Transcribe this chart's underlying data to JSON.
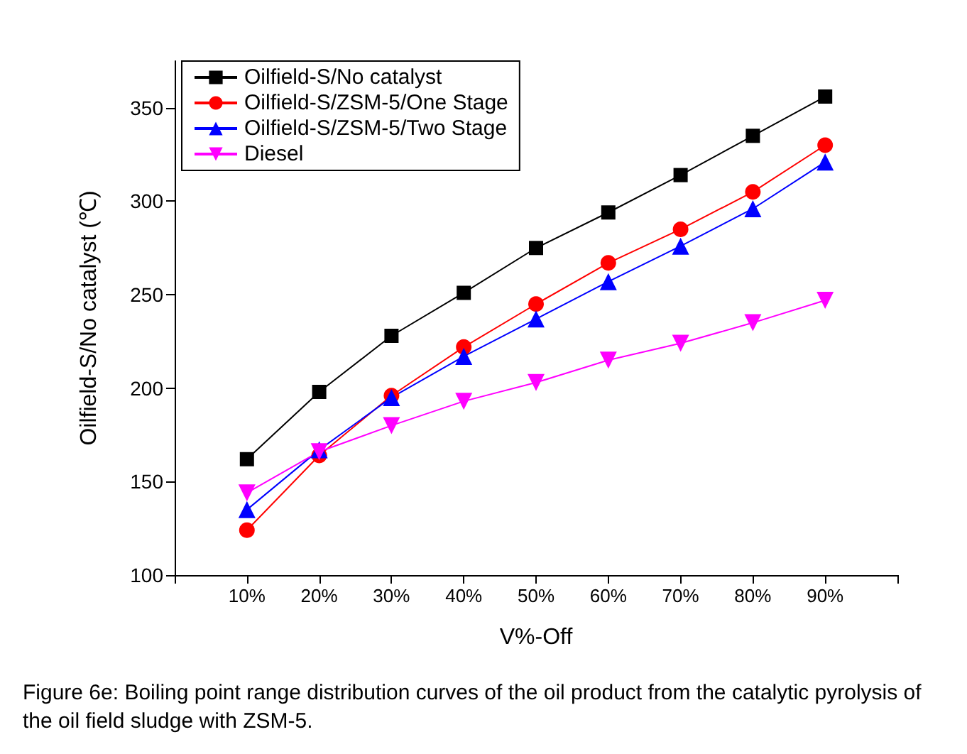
{
  "chart_data": {
    "type": "line",
    "xlabel": "V%-Off",
    "ylabel": "Oilfield-S/No catalyst (℃)",
    "x": [
      10,
      20,
      30,
      40,
      50,
      60,
      70,
      80,
      90
    ],
    "xlim": [
      0,
      100
    ],
    "xticks": [
      {
        "value": 0,
        "label": null
      },
      {
        "value": 10,
        "label": "10%"
      },
      {
        "value": 20,
        "label": "20%"
      },
      {
        "value": 30,
        "label": "30%"
      },
      {
        "value": 40,
        "label": "40%"
      },
      {
        "value": 50,
        "label": "50%"
      },
      {
        "value": 60,
        "label": "60%"
      },
      {
        "value": 70,
        "label": "70%"
      },
      {
        "value": 80,
        "label": "80%"
      },
      {
        "value": 90,
        "label": "90%"
      },
      {
        "value": 100,
        "label": null
      }
    ],
    "ylim": [
      100,
      375
    ],
    "yticks": [
      100,
      150,
      200,
      250,
      300,
      350
    ],
    "grid": false,
    "legend": "top left",
    "series": [
      {
        "name": "Oilfield-S/No catalyst",
        "color": "#000000",
        "marker": "square",
        "values": [
          162,
          198,
          228,
          251,
          275,
          294,
          314,
          335,
          356
        ]
      },
      {
        "name": "Oilfield-S/ZSM-5/One Stage",
        "color": "#ff0000",
        "marker": "circle",
        "values": [
          124,
          164,
          196,
          222,
          245,
          267,
          285,
          305,
          330
        ]
      },
      {
        "name": "Oilfield-S/ZSM-5/Two Stage",
        "color": "#0000ff",
        "marker": "triangle",
        "values": [
          135,
          167,
          195,
          217,
          237,
          257,
          276,
          296,
          321
        ]
      },
      {
        "name": "Diesel",
        "color": "#ff00ff",
        "marker": "triangle-down",
        "values": [
          144,
          166,
          180,
          193,
          203,
          215,
          224,
          235,
          247
        ]
      }
    ],
    "annotations": [
      "Figure 6e: Boiling point range distribution curves of the oil product from the catalytic pyrolysis of the oil field sludge with ZSM-5."
    ]
  }
}
